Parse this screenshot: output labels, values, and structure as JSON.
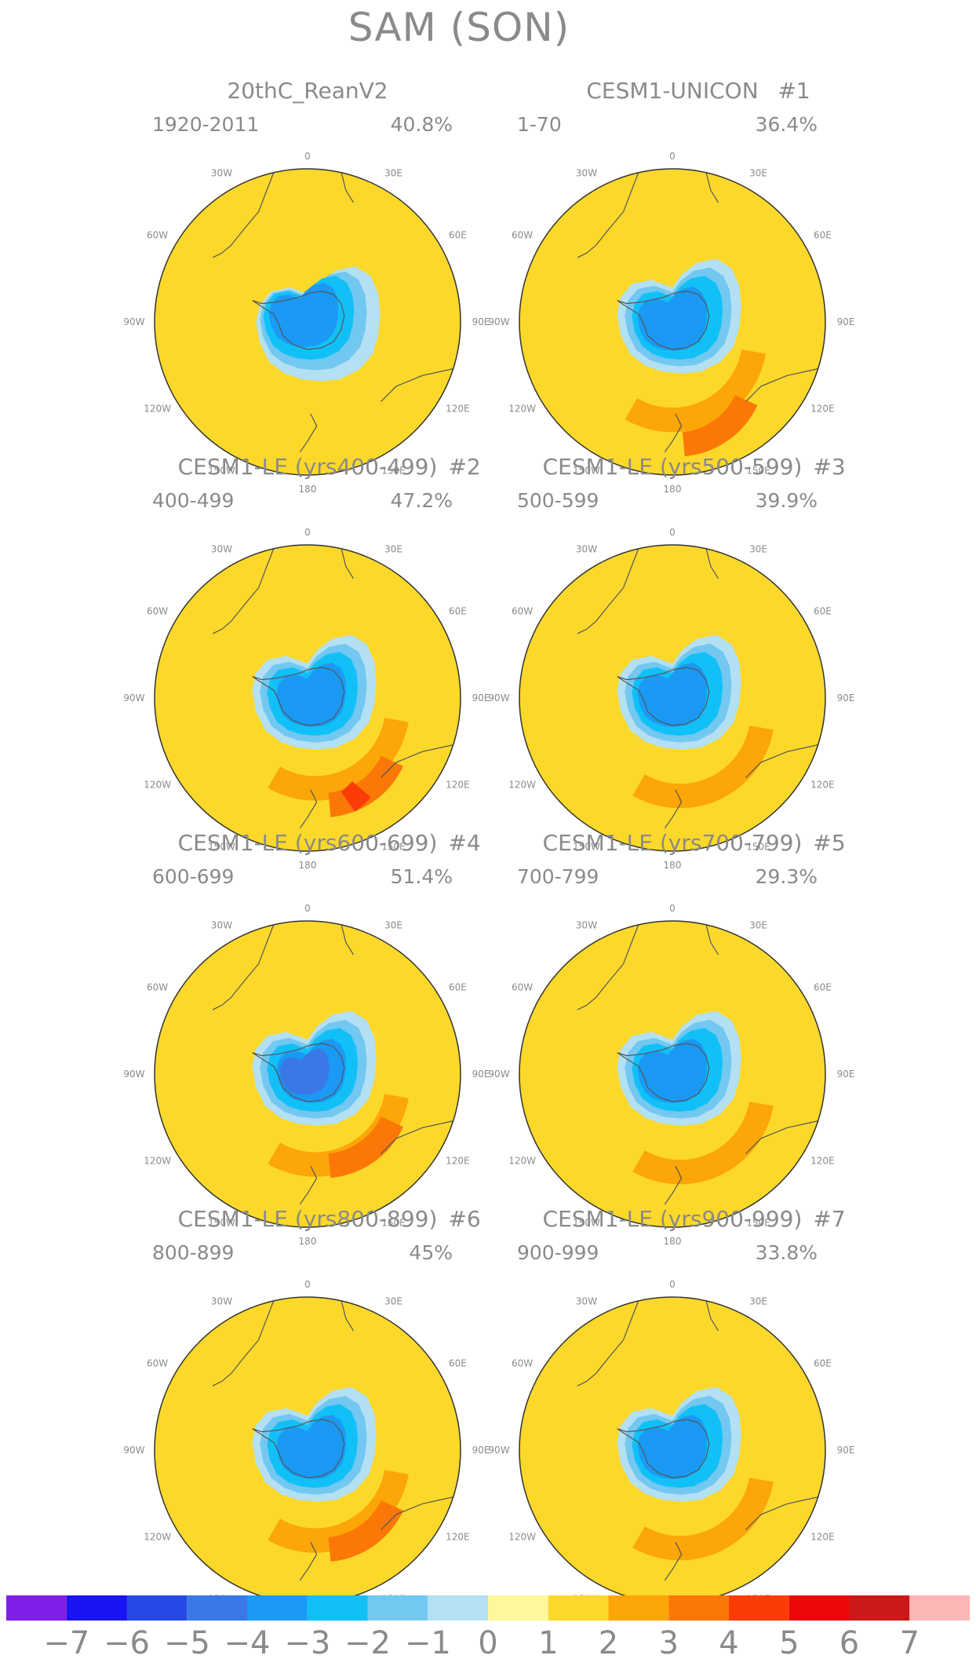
{
  "title": "SAM (SON)",
  "panels": [
    {
      "title": "20thC_ReanV2",
      "tag": "",
      "years": "1920-2011",
      "variance": "40.8%"
    },
    {
      "title": "CESM1-UNICON",
      "tag": "#1",
      "years": "1-70",
      "variance": "36.4%"
    },
    {
      "title": "CESM1-LE (yrs400-499)",
      "tag": "#2",
      "years": "400-499",
      "variance": "47.2%"
    },
    {
      "title": "CESM1-LE (yrs500-599)",
      "tag": "#3",
      "years": "500-599",
      "variance": "39.9%"
    },
    {
      "title": "CESM1-LE (yrs600-699)",
      "tag": "#4",
      "years": "600-699",
      "variance": "51.4%"
    },
    {
      "title": "CESM1-LE (yrs700-799)",
      "tag": "#5",
      "years": "700-799",
      "variance": "29.3%"
    },
    {
      "title": "CESM1-LE (yrs800-899)",
      "tag": "#6",
      "years": "800-899",
      "variance": "45%"
    },
    {
      "title": "CESM1-LE (yrs900-999)",
      "tag": "#7",
      "years": "900-999",
      "variance": "33.8%"
    }
  ],
  "longitude_labels": {
    "n0": "0",
    "n30w": "30W",
    "n30e": "30E",
    "n60w": "60W",
    "n60e": "60E",
    "n90w": "90W",
    "n90e": "90E",
    "n120w": "120W",
    "n120e": "120E",
    "n150w": "150W",
    "n150e": "150E",
    "n180": "180"
  },
  "colorbar": {
    "colors": [
      "#7e1ee6",
      "#1a12f0",
      "#2848e6",
      "#3a78e6",
      "#1a9af5",
      "#12c0f8",
      "#72c8f0",
      "#b4e0f4",
      "#fdf89c",
      "#fcd82a",
      "#fca608",
      "#fc7806",
      "#fc3c06",
      "#ec0808",
      "#cc1818",
      "#fcb6b6"
    ],
    "labels": [
      "−7",
      "−6",
      "−5",
      "−4",
      "−3",
      "−2",
      "−1",
      "0",
      "1",
      "2",
      "3",
      "4",
      "5",
      "6",
      "7"
    ]
  },
  "panel_contours": [
    [
      {
        "v": -1,
        "bias": [
          0.02,
          -0.04
        ]
      },
      {
        "v": -2,
        "bias": [
          0.0,
          -0.02
        ]
      },
      {
        "v": -3,
        "bias": [
          -0.02,
          0.0
        ]
      },
      {
        "v": -4,
        "bias": [
          -0.04,
          0.02
        ]
      }
    ],
    [
      {
        "v": 1,
        "bias": [
          0.0,
          0.1
        ]
      },
      {
        "v": 2,
        "bias": [
          0.03,
          0.3
        ]
      },
      {
        "v": -1,
        "bias": [
          0.0,
          0.0
        ]
      },
      {
        "v": -2,
        "bias": [
          0.0,
          0.0
        ]
      },
      {
        "v": -3,
        "bias": [
          0.0,
          0.0
        ]
      },
      {
        "v": -4,
        "bias": [
          -0.02,
          0.0
        ]
      }
    ],
    [
      {
        "v": 1,
        "bias": [
          0.05,
          0.05
        ]
      },
      {
        "v": 2,
        "bias": [
          0.1,
          0.2
        ]
      },
      {
        "v": 3,
        "bias": [
          0.0,
          0.3
        ]
      },
      {
        "v": -1,
        "bias": [
          0.0,
          0.0
        ]
      },
      {
        "v": -2,
        "bias": [
          0.0,
          0.0
        ]
      },
      {
        "v": -3,
        "bias": [
          0.0,
          0.0
        ]
      },
      {
        "v": -4,
        "bias": [
          0.0,
          0.0
        ]
      }
    ],
    [
      {
        "v": 1,
        "bias": [
          0.05,
          0.1
        ]
      },
      {
        "v": -1,
        "bias": [
          0.0,
          0.0
        ]
      },
      {
        "v": -2,
        "bias": [
          0.0,
          0.0
        ]
      },
      {
        "v": -3,
        "bias": [
          0.0,
          0.0
        ]
      },
      {
        "v": -4,
        "bias": [
          -0.02,
          0.0
        ]
      }
    ],
    [
      {
        "v": 1,
        "bias": [
          0.05,
          0.05
        ]
      },
      {
        "v": 2,
        "bias": [
          0.1,
          0.1
        ]
      },
      {
        "v": -1,
        "bias": [
          0.0,
          0.0
        ]
      },
      {
        "v": -2,
        "bias": [
          0.0,
          0.0
        ]
      },
      {
        "v": -3,
        "bias": [
          0.0,
          0.0
        ]
      },
      {
        "v": -4,
        "bias": [
          0.0,
          0.0
        ]
      },
      {
        "v": -5,
        "bias": [
          -0.03,
          0.0
        ]
      }
    ],
    [
      {
        "v": 1,
        "bias": [
          0.05,
          0.1
        ]
      },
      {
        "v": -1,
        "bias": [
          0.0,
          0.0
        ]
      },
      {
        "v": -2,
        "bias": [
          0.0,
          0.0
        ]
      },
      {
        "v": -3,
        "bias": [
          0.0,
          0.0
        ]
      },
      {
        "v": -4,
        "bias": [
          -0.02,
          0.0
        ]
      }
    ],
    [
      {
        "v": 1,
        "bias": [
          0.05,
          0.05
        ]
      },
      {
        "v": 2,
        "bias": [
          0.1,
          0.15
        ]
      },
      {
        "v": -1,
        "bias": [
          0.0,
          0.0
        ]
      },
      {
        "v": -2,
        "bias": [
          0.0,
          0.0
        ]
      },
      {
        "v": -3,
        "bias": [
          0.0,
          0.0
        ]
      },
      {
        "v": -4,
        "bias": [
          0.0,
          0.0
        ]
      }
    ],
    [
      {
        "v": 1,
        "bias": [
          0.05,
          0.1
        ]
      },
      {
        "v": -1,
        "bias": [
          0.0,
          0.0
        ]
      },
      {
        "v": -2,
        "bias": [
          0.0,
          0.0
        ]
      },
      {
        "v": -3,
        "bias": [
          0.0,
          0.0
        ]
      },
      {
        "v": -4,
        "bias": [
          -0.02,
          0.0
        ]
      }
    ]
  ]
}
